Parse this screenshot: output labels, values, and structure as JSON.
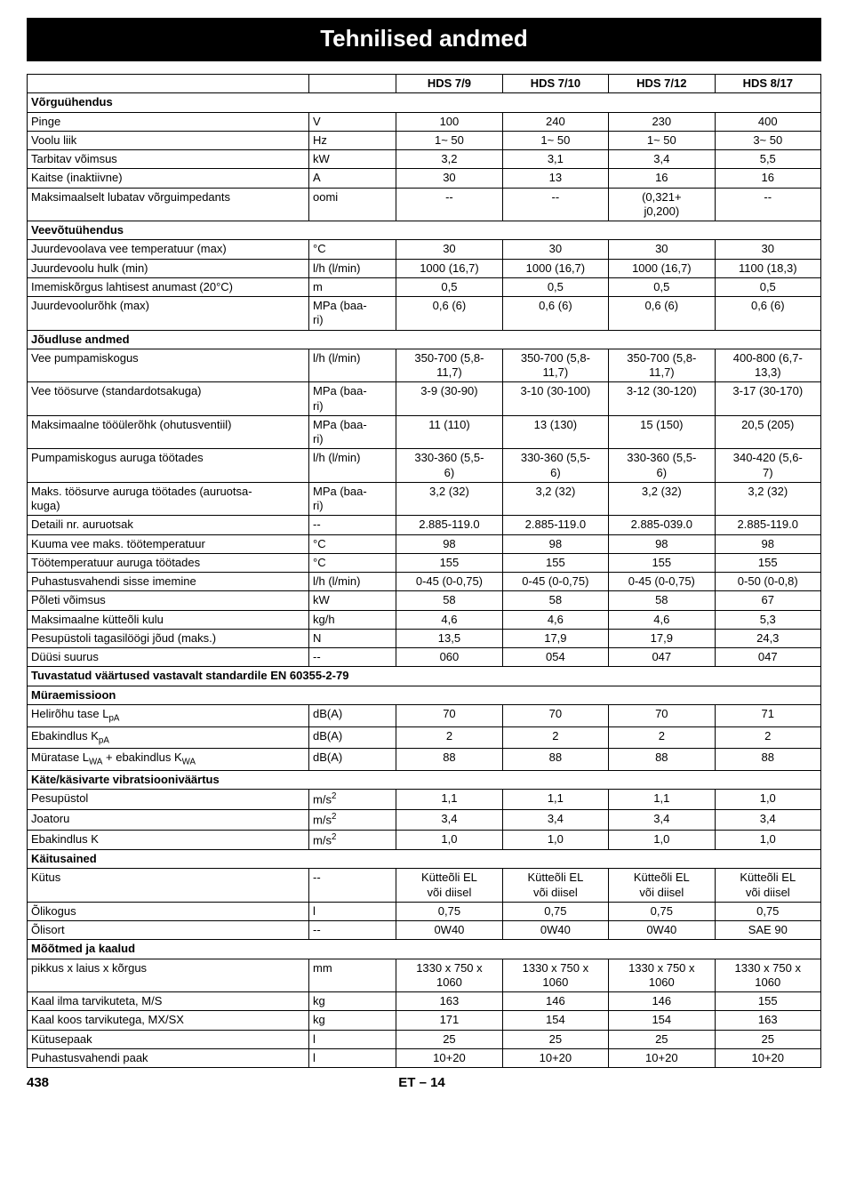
{
  "title": "Tehnilised andmed",
  "footer": {
    "page": "438",
    "code": "ET – 14"
  },
  "header": {
    "blank1": "",
    "blank2": "",
    "c1": "HDS 7/9",
    "c2": "HDS 7/10",
    "c3": "HDS 7/12",
    "c4": "HDS 8/17"
  },
  "sections": [
    {
      "title": "Võrguühendus",
      "rows": [
        {
          "label": "Pinge",
          "unit": "V",
          "v": [
            "100",
            "240",
            "230",
            "400"
          ]
        },
        {
          "label": "Voolu liik",
          "unit": "Hz",
          "v": [
            "1~ 50",
            "1~ 50",
            "1~ 50",
            "3~ 50"
          ]
        },
        {
          "label": "Tarbitav võimsus",
          "unit": "kW",
          "v": [
            "3,2",
            "3,1",
            "3,4",
            "5,5"
          ]
        },
        {
          "label": "Kaitse (inaktiivne)",
          "unit": "A",
          "v": [
            "30",
            "13",
            "16",
            "16"
          ]
        },
        {
          "label": "Maksimaalselt lubatav võrguimpedants",
          "unit": "oomi",
          "v": [
            "--",
            "--",
            "(0,321+\nj0,200)",
            "--"
          ]
        }
      ]
    },
    {
      "title": "Veevõtuühendus",
      "rows": [
        {
          "label": "Juurdevoolava vee temperatuur (max)",
          "unit": "°C",
          "v": [
            "30",
            "30",
            "30",
            "30"
          ]
        },
        {
          "label": "Juurdevoolu hulk (min)",
          "unit": "l/h (l/min)",
          "v": [
            "1000 (16,7)",
            "1000 (16,7)",
            "1000 (16,7)",
            "1100 (18,3)"
          ]
        },
        {
          "label": "Imemiskõrgus lahtisest anumast (20°C)",
          "unit": "m",
          "v": [
            "0,5",
            "0,5",
            "0,5",
            "0,5"
          ]
        },
        {
          "label": "Juurdevoolurõhk (max)",
          "unit": "MPa (baa-\nri)",
          "v": [
            "0,6 (6)",
            "0,6 (6)",
            "0,6 (6)",
            "0,6 (6)"
          ]
        }
      ]
    },
    {
      "title": "Jõudluse andmed",
      "rows": [
        {
          "label": "Vee pumpamiskogus",
          "unit": "l/h (l/min)",
          "v": [
            "350-700 (5,8-\n11,7)",
            "350-700 (5,8-\n11,7)",
            "350-700 (5,8-\n11,7)",
            "400-800 (6,7-\n13,3)"
          ]
        },
        {
          "label": "Vee töösurve (standardotsakuga)",
          "unit": "MPa (baa-\nri)",
          "v": [
            "3-9 (30-90)",
            "3-10 (30-100)",
            "3-12 (30-120)",
            "3-17 (30-170)"
          ]
        },
        {
          "label": "Maksimaalne tööülerõhk (ohutusventiil)",
          "unit": "MPa (baa-\nri)",
          "v": [
            "11 (110)",
            "13 (130)",
            "15 (150)",
            "20,5 (205)"
          ]
        },
        {
          "label": "Pumpamiskogus auruga töötades",
          "unit": "l/h (l/min)",
          "v": [
            "330-360 (5,5-\n6)",
            "330-360 (5,5-\n6)",
            "330-360 (5,5-\n6)",
            "340-420 (5,6-\n7)"
          ]
        },
        {
          "label": "Maks. töösurve auruga töötades (auruotsa-\nkuga)",
          "unit": "MPa (baa-\nri)",
          "v": [
            "3,2 (32)",
            "3,2 (32)",
            "3,2 (32)",
            "3,2 (32)"
          ]
        },
        {
          "label": "Detaili nr. auruotsak",
          "unit": "--",
          "v": [
            "2.885-119.0",
            "2.885-119.0",
            "2.885-039.0",
            "2.885-119.0"
          ]
        },
        {
          "label": "Kuuma vee maks. töötemperatuur",
          "unit": "°C",
          "v": [
            "98",
            "98",
            "98",
            "98"
          ]
        },
        {
          "label": "Töötemperatuur auruga töötades",
          "unit": "°C",
          "v": [
            "155",
            "155",
            "155",
            "155"
          ]
        },
        {
          "label": "Puhastusvahendi sisse imemine",
          "unit": "l/h (l/min)",
          "v": [
            "0-45 (0-0,75)",
            "0-45 (0-0,75)",
            "0-45 (0-0,75)",
            "0-50 (0-0,8)"
          ]
        },
        {
          "label": "Põleti võimsus",
          "unit": "kW",
          "v": [
            "58",
            "58",
            "58",
            "67"
          ]
        },
        {
          "label": "Maksimaalne kütteõli kulu",
          "unit": "kg/h",
          "v": [
            "4,6",
            "4,6",
            "4,6",
            "5,3"
          ]
        },
        {
          "label": "Pesupüstoli tagasilöögi jõud (maks.)",
          "unit": "N",
          "v": [
            "13,5",
            "17,9",
            "17,9",
            "24,3"
          ]
        },
        {
          "label": "Düüsi suurus",
          "unit": "--",
          "v": [
            "060",
            "054",
            "047",
            "047"
          ]
        }
      ]
    },
    {
      "title": "Tuvastatud väärtused vastavalt standardile EN 60355-2-79",
      "rows": []
    },
    {
      "title": "Müraemissioon",
      "noborder": true,
      "rows": [
        {
          "label_html": "Helirõhu tase L<sub>pA</sub>",
          "unit": "dB(A)",
          "v": [
            "70",
            "70",
            "70",
            "71"
          ]
        },
        {
          "label_html": "Ebakindlus K<sub>pA</sub>",
          "unit": "dB(A)",
          "v": [
            "2",
            "2",
            "2",
            "2"
          ]
        },
        {
          "label_html": "Müratase L<sub>WA</sub> + ebakindlus K<sub>WA</sub>",
          "unit": "dB(A)",
          "v": [
            "88",
            "88",
            "88",
            "88"
          ]
        }
      ]
    },
    {
      "title": "Käte/käsivarte vibratsiooniväärtus",
      "noborder": true,
      "rows": [
        {
          "label": "Pesupüstol",
          "unit_html": "m/s<sup>2</sup>",
          "v": [
            "1,1",
            "1,1",
            "1,1",
            "1,0"
          ]
        },
        {
          "label": "Joatoru",
          "unit_html": "m/s<sup>2</sup>",
          "v": [
            "3,4",
            "3,4",
            "3,4",
            "3,4"
          ]
        },
        {
          "label": "Ebakindlus K",
          "unit_html": "m/s<sup>2</sup>",
          "v": [
            "1,0",
            "1,0",
            "1,0",
            "1,0"
          ]
        }
      ]
    },
    {
      "title": "Käitusained",
      "rows": [
        {
          "label": "Kütus",
          "unit": "--",
          "v": [
            "Kütteõli EL\nvõi diisel",
            "Kütteõli EL\nvõi diisel",
            "Kütteõli EL\nvõi diisel",
            "Kütteõli EL\nvõi diisel"
          ]
        },
        {
          "label": "Õlikogus",
          "unit": "l",
          "v": [
            "0,75",
            "0,75",
            "0,75",
            "0,75"
          ]
        },
        {
          "label": "Õlisort",
          "unit": "--",
          "v": [
            "0W40",
            "0W40",
            "0W40",
            "SAE 90"
          ]
        }
      ]
    },
    {
      "title": "Mõõtmed ja kaalud",
      "rows": [
        {
          "label": "pikkus x laius x kõrgus",
          "unit": "mm",
          "v": [
            "1330 x 750 x\n1060",
            "1330 x 750 x\n1060",
            "1330 x 750 x\n1060",
            "1330 x 750 x\n1060"
          ]
        },
        {
          "label": "Kaal ilma tarvikuteta, M/S",
          "unit": "kg",
          "v": [
            "163",
            "146",
            "146",
            "155"
          ]
        },
        {
          "label": "Kaal koos tarvikutega, MX/SX",
          "unit": "kg",
          "v": [
            "171",
            "154",
            "154",
            "163"
          ]
        },
        {
          "label": "Kütusepaak",
          "unit": "l",
          "v": [
            "25",
            "25",
            "25",
            "25"
          ]
        },
        {
          "label": "Puhastusvahendi paak",
          "unit": "l",
          "v": [
            "10+20",
            "10+20",
            "10+20",
            "10+20"
          ]
        }
      ]
    }
  ]
}
